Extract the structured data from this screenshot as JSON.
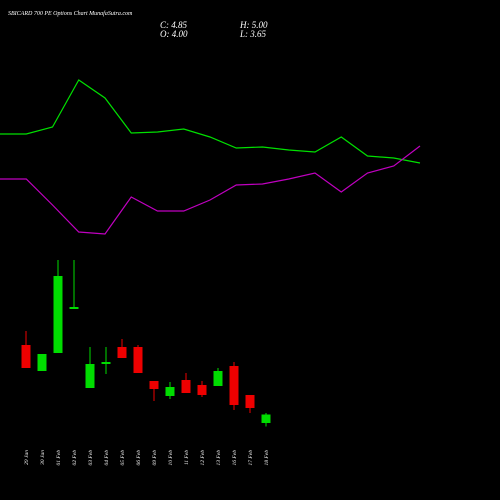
{
  "chart_data": [
    {
      "type": "candlestick",
      "title": "SBICARD 700 PE Options Chart MunafaSutra.com",
      "header": [
        "C: 4.85",
        "H: 5.00",
        "O: 4.00",
        "L: 3.65"
      ],
      "categories": [
        "29 Jan",
        "30 Jan",
        "01 Feb",
        "02 Feb",
        "03 Feb",
        "04 Feb",
        "05 Feb",
        "06 Feb",
        "09 Feb",
        "10 Feb",
        "11 Feb",
        "12 Feb",
        "13 Feb",
        "16 Feb",
        "17 Feb",
        "18 Feb"
      ],
      "open": [
        11.8,
        9.2,
        11.0,
        15.4,
        7.5,
        9.9,
        11.6,
        11.6,
        8.2,
        6.7,
        8.3,
        7.8,
        7.7,
        9.7,
        6.8,
        4.0
      ],
      "high": [
        13.2,
        10.9,
        20.3,
        20.3,
        11.6,
        11.6,
        12.4,
        11.8,
        8.2,
        8.1,
        9.0,
        8.2,
        9.5,
        10.1,
        6.8,
        5.0
      ],
      "low": [
        9.5,
        9.2,
        11.0,
        15.4,
        7.5,
        8.9,
        10.5,
        9.0,
        6.2,
        6.4,
        7.0,
        6.6,
        7.7,
        5.3,
        5.0,
        3.65
      ],
      "close": [
        9.5,
        10.9,
        18.7,
        15.6,
        9.9,
        10.1,
        10.5,
        9.0,
        7.4,
        7.6,
        7.0,
        6.8,
        9.2,
        5.8,
        5.5,
        4.85
      ],
      "up_color": "#00dd00",
      "down_color": "#ee0000",
      "ylim": [
        -3.7,
        46.3
      ]
    },
    {
      "type": "line",
      "categories": [
        null,
        null,
        null,
        null,
        null,
        null,
        null,
        null,
        null,
        null,
        null,
        null,
        null,
        null,
        null,
        null,
        null
      ],
      "series": [
        {
          "color": "#00e000",
          "values": [
            32.9,
            32.9,
            33.6,
            38.3,
            36.5,
            33.0,
            33.1,
            33.4,
            32.6,
            31.5,
            31.6,
            31.3,
            31.1,
            32.6,
            30.7,
            30.5,
            30.0
          ]
        },
        {
          "color": "#c000c0",
          "values": [
            28.4,
            28.4,
            25.8,
            23.1,
            22.9,
            26.6,
            25.2,
            25.2,
            26.3,
            27.8,
            27.9,
            28.4,
            29.0,
            27.1,
            29.0,
            29.7,
            31.7
          ]
        }
      ],
      "ylim": [
        -3.7,
        46.3
      ]
    }
  ]
}
